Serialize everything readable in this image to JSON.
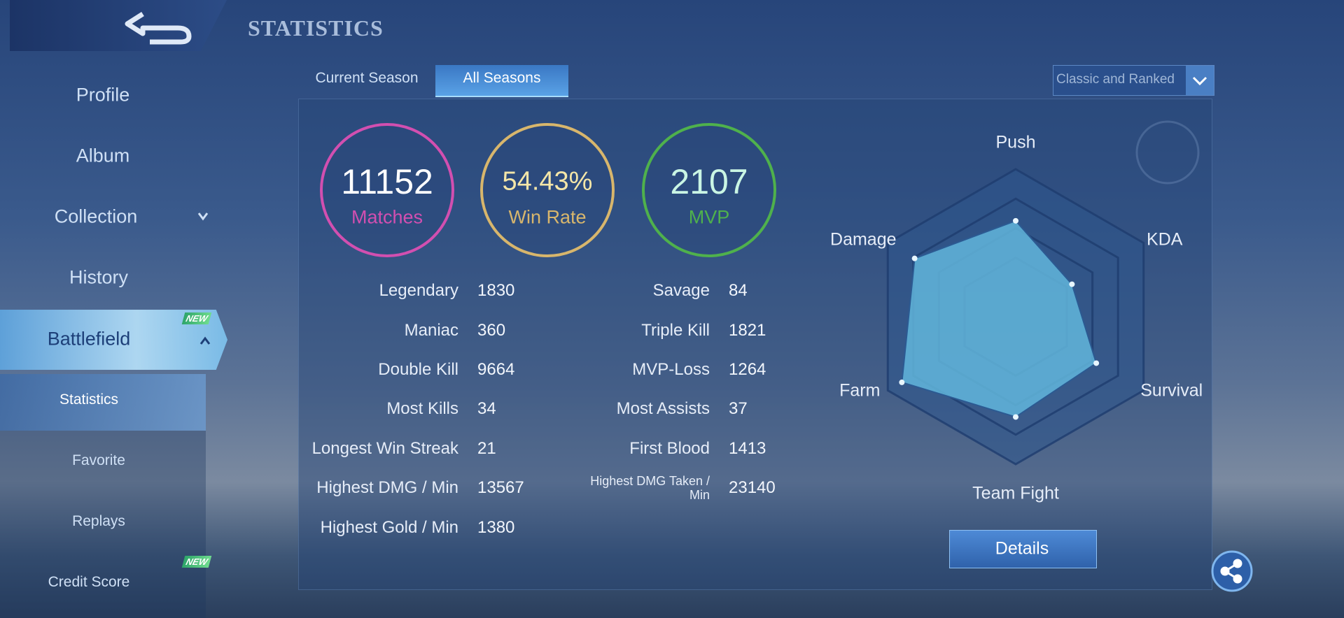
{
  "header": {
    "title": "STATISTICS"
  },
  "sidebar": {
    "items": [
      "Profile",
      "Album",
      "Collection",
      "History",
      "Battlefield",
      "Statistics",
      "Favorite",
      "Replays",
      "Credit Score"
    ],
    "badges": [
      "NEW",
      "NEW"
    ]
  },
  "tabs": [
    "Current Season",
    "All Seasons"
  ],
  "mode_filter": "Classic and Ranked",
  "summary": [
    {
      "value": "11152",
      "label": "Matches",
      "color": "#d24fb0"
    },
    {
      "value": "54.43%",
      "label": "Win Rate",
      "color": "#d8b66c"
    },
    {
      "value": "2107",
      "label": "MVP",
      "color": "#4fb14c"
    }
  ],
  "stats": {
    "left": [
      [
        "Legendary",
        "1830"
      ],
      [
        "Maniac",
        "360"
      ],
      [
        "Double Kill",
        "9664"
      ],
      [
        "Most Kills",
        "34"
      ],
      [
        "Longest Win Streak",
        "21"
      ],
      [
        "Highest DMG / Min",
        "13567"
      ],
      [
        "Highest Gold / Min",
        "1380"
      ]
    ],
    "right": [
      [
        "Savage",
        "84"
      ],
      [
        "Triple Kill",
        "1821"
      ],
      [
        "MVP-Loss",
        "1264"
      ],
      [
        "Most Assists",
        "37"
      ],
      [
        "First Blood",
        "1413"
      ],
      [
        "Highest DMG Taken / Min",
        "23140"
      ]
    ]
  },
  "radar": {
    "axes": [
      "Push",
      "KDA",
      "Survival",
      "Team Fight",
      "Farm",
      "Damage"
    ],
    "values": [
      65,
      44,
      63,
      68,
      89,
      79
    ],
    "rlim": [
      0,
      100
    ],
    "color": "#62b6dc"
  },
  "details_button": "Details"
}
